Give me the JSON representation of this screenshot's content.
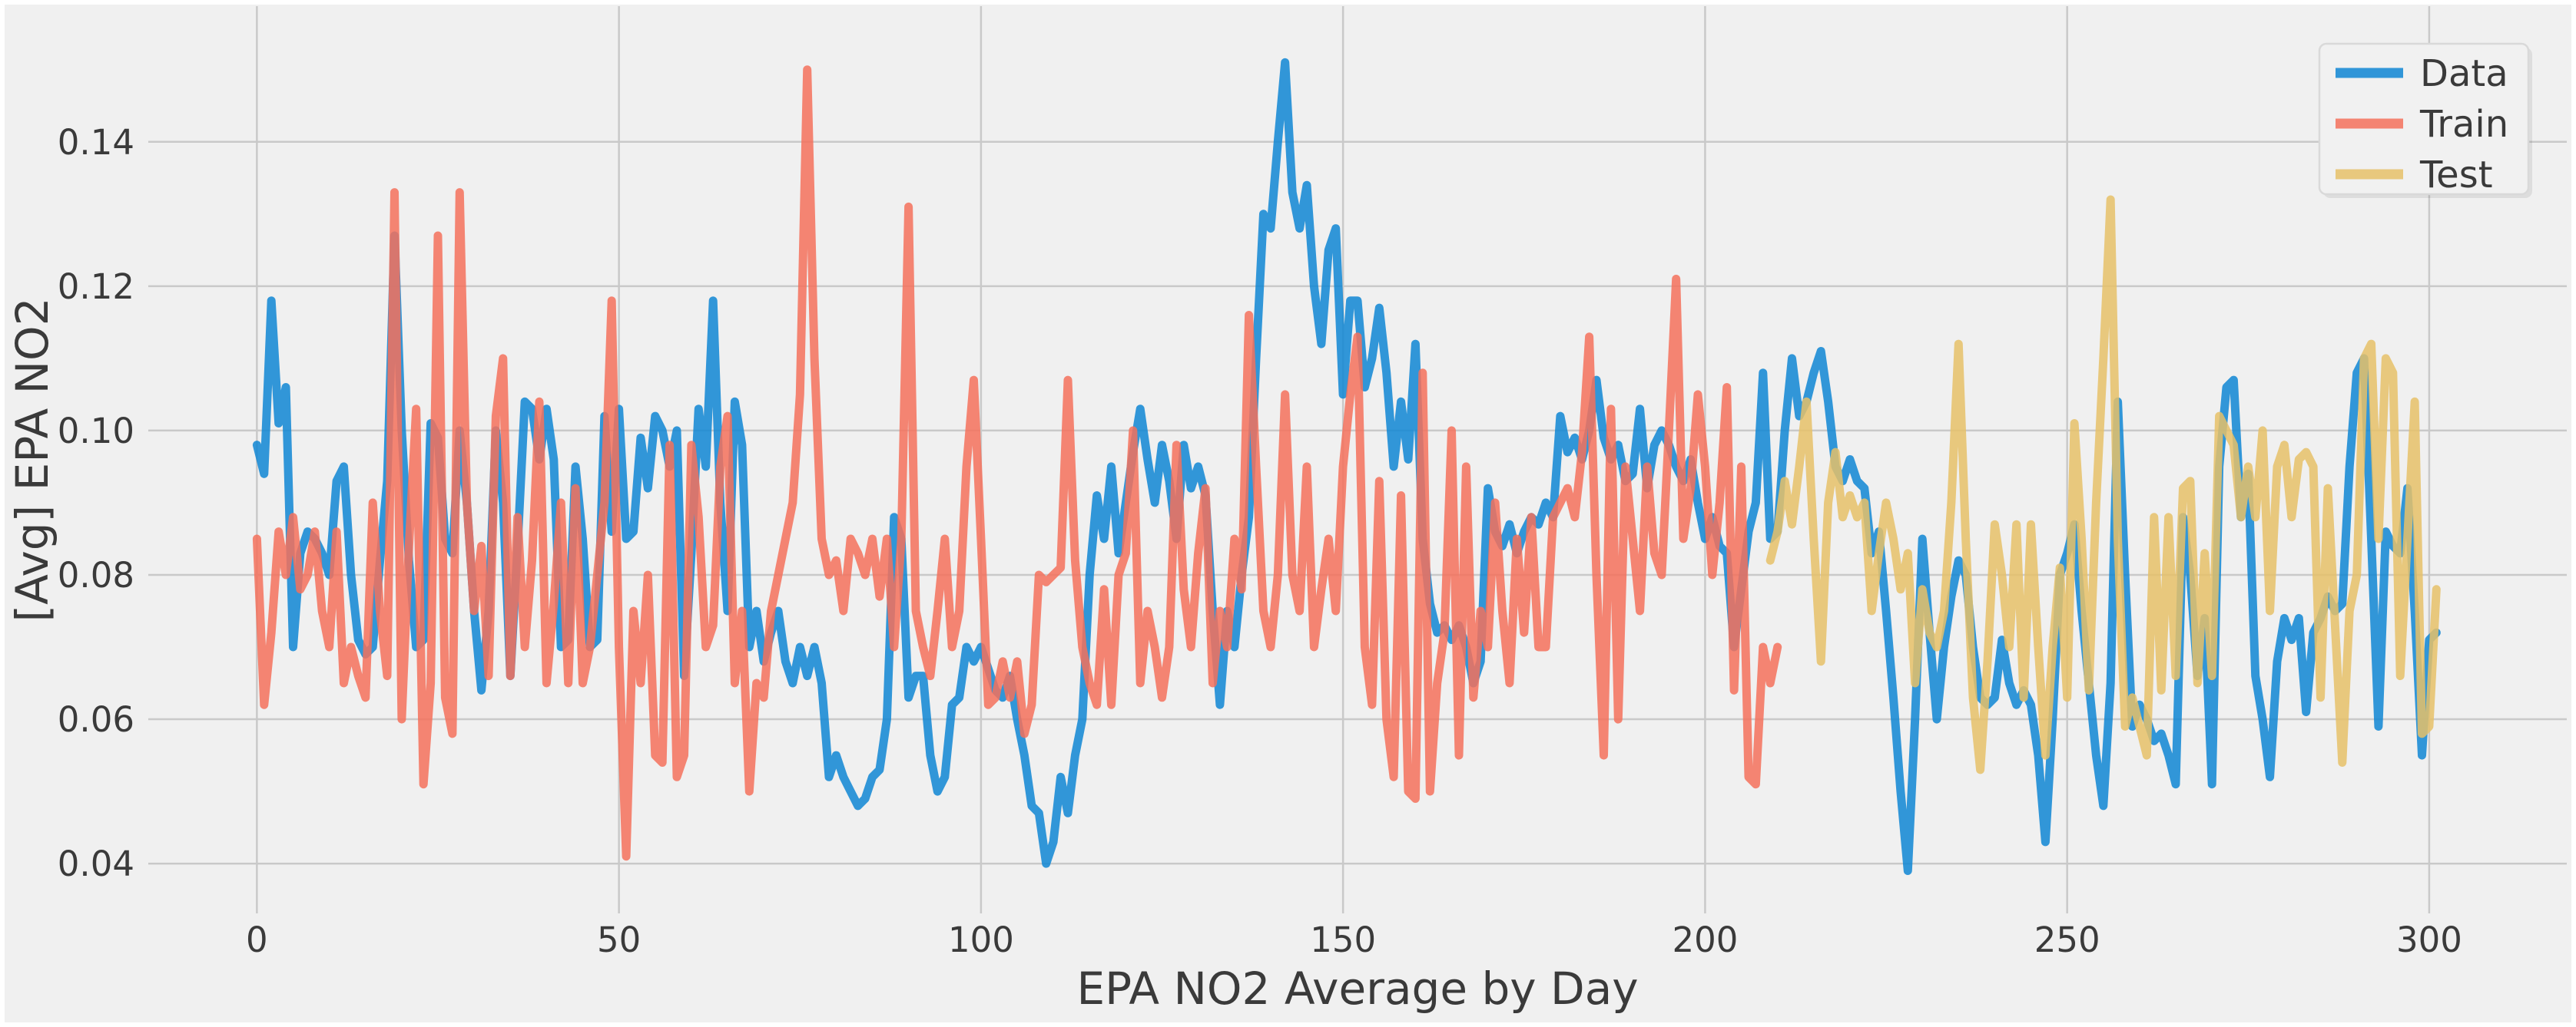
{
  "chart_data": {
    "type": "line",
    "title": "",
    "xlabel": "EPA NO2 Average by Day",
    "ylabel": "[Avg] EPA NO2",
    "xlim": [
      -15,
      319
    ],
    "ylim": [
      0.0331,
      0.1588
    ],
    "xticks": [
      "0",
      "50",
      "100",
      "150",
      "200",
      "250",
      "300"
    ],
    "yticks": [
      "0.04",
      "0.06",
      "0.08",
      "0.10",
      "0.12",
      "0.14"
    ],
    "grid": true,
    "legend_position": "upper right",
    "background_color": "#f0f0f0",
    "grid_color": "#c9c9c9",
    "text_color": "#3a3a3a",
    "line_width": 11,
    "line_opacity": 0.85,
    "series": [
      {
        "name": "Data",
        "color": "#0f86d3",
        "x_start": 0,
        "values": [
          0.098,
          0.094,
          0.118,
          0.101,
          0.106,
          0.07,
          0.083,
          0.086,
          0.085,
          0.083,
          0.08,
          0.093,
          0.095,
          0.08,
          0.071,
          0.069,
          0.07,
          0.082,
          0.093,
          0.127,
          0.1,
          0.082,
          0.07,
          0.071,
          0.101,
          0.099,
          0.085,
          0.083,
          0.1,
          0.09,
          0.075,
          0.064,
          0.075,
          0.1,
          0.09,
          0.066,
          0.084,
          0.104,
          0.103,
          0.096,
          0.103,
          0.096,
          0.07,
          0.071,
          0.095,
          0.085,
          0.07,
          0.071,
          0.102,
          0.086,
          0.103,
          0.085,
          0.086,
          0.099,
          0.092,
          0.102,
          0.1,
          0.095,
          0.1,
          0.066,
          0.083,
          0.103,
          0.095,
          0.118,
          0.09,
          0.075,
          0.104,
          0.098,
          0.07,
          0.075,
          0.068,
          0.072,
          0.075,
          0.068,
          0.065,
          0.07,
          0.066,
          0.07,
          0.065,
          0.052,
          0.055,
          0.052,
          0.05,
          0.048,
          0.049,
          0.052,
          0.053,
          0.06,
          0.088,
          0.085,
          0.063,
          0.066,
          0.066,
          0.055,
          0.05,
          0.052,
          0.062,
          0.063,
          0.07,
          0.068,
          0.07,
          0.067,
          0.064,
          0.063,
          0.066,
          0.06,
          0.055,
          0.048,
          0.047,
          0.04,
          0.043,
          0.052,
          0.047,
          0.055,
          0.06,
          0.08,
          0.091,
          0.085,
          0.095,
          0.083,
          0.09,
          0.097,
          0.103,
          0.096,
          0.09,
          0.098,
          0.093,
          0.085,
          0.098,
          0.092,
          0.095,
          0.091,
          0.075,
          0.062,
          0.075,
          0.07,
          0.08,
          0.088,
          0.11,
          0.13,
          0.128,
          0.14,
          0.151,
          0.133,
          0.128,
          0.134,
          0.12,
          0.112,
          0.125,
          0.128,
          0.105,
          0.118,
          0.118,
          0.106,
          0.11,
          0.117,
          0.108,
          0.095,
          0.104,
          0.096,
          0.112,
          0.085,
          0.076,
          0.072,
          0.073,
          0.071,
          0.073,
          0.07,
          0.065,
          0.068,
          0.092,
          0.086,
          0.084,
          0.087,
          0.083,
          0.086,
          0.088,
          0.087,
          0.09,
          0.088,
          0.102,
          0.097,
          0.099,
          0.096,
          0.1,
          0.107,
          0.099,
          0.096,
          0.098,
          0.093,
          0.094,
          0.103,
          0.092,
          0.098,
          0.1,
          0.098,
          0.095,
          0.093,
          0.096,
          0.09,
          0.085,
          0.088,
          0.084,
          0.083,
          0.07,
          0.078,
          0.086,
          0.09,
          0.108,
          0.085,
          0.086,
          0.1,
          0.11,
          0.102,
          0.104,
          0.108,
          0.111,
          0.104,
          0.095,
          0.093,
          0.096,
          0.093,
          0.092,
          0.083,
          0.086,
          0.075,
          0.063,
          0.05,
          0.039,
          0.06,
          0.085,
          0.072,
          0.06,
          0.07,
          0.077,
          0.082,
          0.08,
          0.07,
          0.063,
          0.062,
          0.063,
          0.071,
          0.065,
          0.062,
          0.064,
          0.062,
          0.055,
          0.043,
          0.06,
          0.08,
          0.083,
          0.087,
          0.075,
          0.065,
          0.055,
          0.048,
          0.065,
          0.104,
          0.08,
          0.059,
          0.062,
          0.06,
          0.057,
          0.058,
          0.055,
          0.051,
          0.088,
          0.08,
          0.066,
          0.074,
          0.051,
          0.095,
          0.106,
          0.107,
          0.088,
          0.094,
          0.066,
          0.06,
          0.052,
          0.068,
          0.074,
          0.071,
          0.074,
          0.061,
          0.072,
          0.074,
          0.077,
          0.075,
          0.076,
          0.095,
          0.108,
          0.11,
          0.085,
          0.059,
          0.086,
          0.084,
          0.083,
          0.092,
          0.075,
          0.055,
          0.071,
          0.072
        ]
      },
      {
        "name": "Train",
        "color": "#f4715c",
        "x_start": 0,
        "values": [
          0.085,
          0.062,
          0.072,
          0.086,
          0.08,
          0.088,
          0.078,
          0.08,
          0.086,
          0.075,
          0.07,
          0.086,
          0.065,
          0.07,
          0.066,
          0.063,
          0.09,
          0.075,
          0.066,
          0.133,
          0.06,
          0.084,
          0.103,
          0.051,
          0.065,
          0.127,
          0.063,
          0.058,
          0.133,
          0.09,
          0.075,
          0.084,
          0.066,
          0.102,
          0.11,
          0.066,
          0.088,
          0.07,
          0.082,
          0.104,
          0.065,
          0.076,
          0.09,
          0.065,
          0.092,
          0.065,
          0.07,
          0.08,
          0.09,
          0.118,
          0.07,
          0.041,
          0.075,
          0.065,
          0.08,
          0.055,
          0.054,
          0.098,
          0.052,
          0.055,
          0.098,
          0.088,
          0.07,
          0.073,
          0.095,
          0.102,
          0.065,
          0.075,
          0.05,
          0.065,
          0.063,
          0.075,
          0.08,
          0.085,
          0.09,
          0.105,
          0.15,
          0.11,
          0.085,
          0.08,
          0.082,
          0.075,
          0.085,
          0.083,
          0.08,
          0.085,
          0.077,
          0.085,
          0.07,
          0.085,
          0.131,
          0.075,
          0.07,
          0.066,
          0.075,
          0.085,
          0.07,
          0.075,
          0.095,
          0.107,
          0.085,
          0.062,
          0.063,
          0.068,
          0.063,
          0.068,
          0.058,
          0.062,
          0.08,
          0.079,
          0.08,
          0.081,
          0.107,
          0.082,
          0.07,
          0.065,
          0.062,
          0.078,
          0.062,
          0.08,
          0.083,
          0.1,
          0.065,
          0.075,
          0.07,
          0.063,
          0.07,
          0.098,
          0.078,
          0.07,
          0.083,
          0.092,
          0.065,
          0.075,
          0.07,
          0.085,
          0.078,
          0.116,
          0.095,
          0.075,
          0.07,
          0.08,
          0.105,
          0.08,
          0.075,
          0.095,
          0.07,
          0.078,
          0.085,
          0.075,
          0.095,
          0.105,
          0.113,
          0.07,
          0.062,
          0.093,
          0.06,
          0.052,
          0.091,
          0.05,
          0.049,
          0.108,
          0.05,
          0.065,
          0.072,
          0.1,
          0.055,
          0.095,
          0.063,
          0.075,
          0.07,
          0.09,
          0.075,
          0.065,
          0.085,
          0.072,
          0.088,
          0.07,
          0.07,
          0.088,
          0.09,
          0.092,
          0.088,
          0.097,
          0.113,
          0.08,
          0.055,
          0.103,
          0.06,
          0.095,
          0.085,
          0.075,
          0.095,
          0.083,
          0.08,
          0.1,
          0.121,
          0.085,
          0.092,
          0.105,
          0.095,
          0.08,
          0.09,
          0.106,
          0.064,
          0.095,
          0.052,
          0.051,
          0.07,
          0.065,
          0.07
        ]
      },
      {
        "name": "Test",
        "color": "#e6c169",
        "x_start": 209,
        "values": [
          0.082,
          0.086,
          0.093,
          0.087,
          0.095,
          0.104,
          0.085,
          0.068,
          0.09,
          0.097,
          0.088,
          0.091,
          0.088,
          0.09,
          0.075,
          0.083,
          0.09,
          0.085,
          0.078,
          0.083,
          0.065,
          0.078,
          0.072,
          0.07,
          0.075,
          0.09,
          0.112,
          0.085,
          0.063,
          0.053,
          0.068,
          0.087,
          0.08,
          0.07,
          0.087,
          0.063,
          0.087,
          0.07,
          0.055,
          0.07,
          0.081,
          0.063,
          0.101,
          0.085,
          0.064,
          0.09,
          0.11,
          0.132,
          0.085,
          0.059,
          0.063,
          0.059,
          0.055,
          0.088,
          0.064,
          0.088,
          0.066,
          0.092,
          0.093,
          0.065,
          0.083,
          0.066,
          0.102,
          0.1,
          0.098,
          0.088,
          0.095,
          0.088,
          0.1,
          0.075,
          0.095,
          0.098,
          0.088,
          0.096,
          0.097,
          0.095,
          0.063,
          0.092,
          0.073,
          0.054,
          0.075,
          0.08,
          0.11,
          0.112,
          0.085,
          0.11,
          0.108,
          0.066,
          0.085,
          0.104,
          0.058,
          0.059,
          0.078
        ]
      }
    ]
  }
}
